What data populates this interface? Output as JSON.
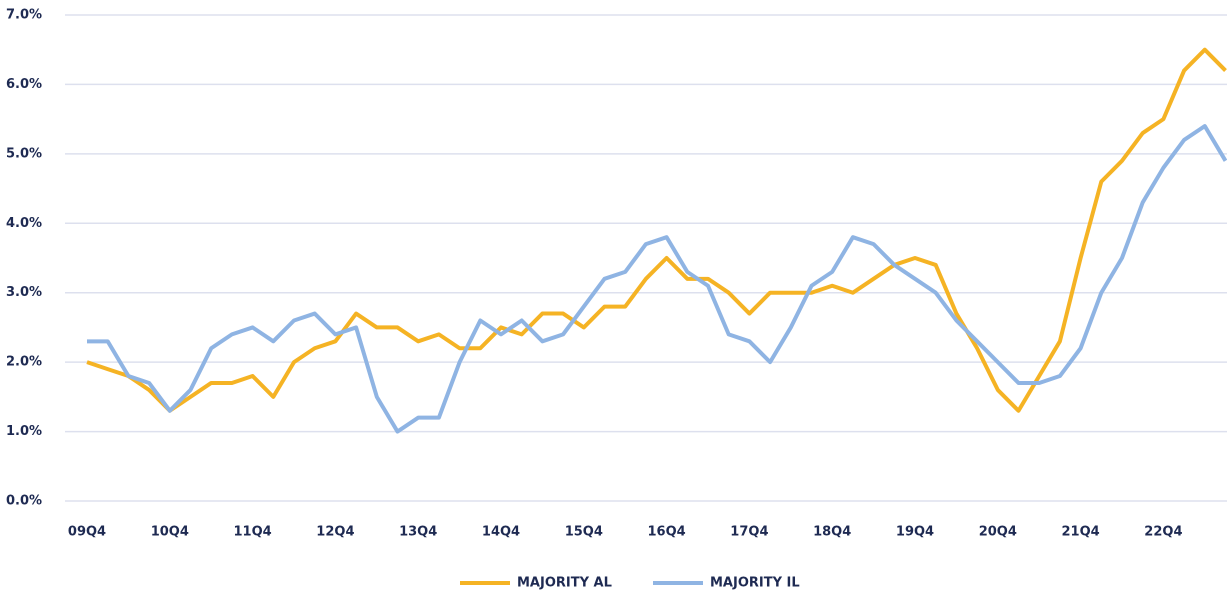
{
  "chart_data": {
    "type": "line",
    "categories": [
      "09Q4",
      null,
      null,
      null,
      "10Q4",
      null,
      null,
      null,
      "11Q4",
      null,
      null,
      null,
      "12Q4",
      null,
      null,
      null,
      "13Q4",
      null,
      null,
      null,
      "14Q4",
      null,
      null,
      null,
      "15Q4",
      null,
      null,
      null,
      "16Q4",
      null,
      null,
      null,
      "17Q4",
      null,
      null,
      null,
      "18Q4",
      null,
      null,
      null,
      "19Q4",
      null,
      null,
      null,
      "20Q4",
      null,
      null,
      null,
      "21Q4",
      null,
      null,
      null,
      "22Q4",
      null,
      null,
      null
    ],
    "series": [
      {
        "name": "MAJORITY AL",
        "color": "#f5b324",
        "values": [
          2.0,
          1.9,
          1.8,
          1.6,
          1.3,
          1.5,
          1.7,
          1.7,
          1.8,
          1.5,
          2.0,
          2.2,
          2.3,
          2.7,
          2.5,
          2.5,
          2.3,
          2.4,
          2.2,
          2.2,
          2.5,
          2.4,
          2.7,
          2.7,
          2.5,
          2.8,
          2.8,
          3.2,
          3.5,
          3.2,
          3.2,
          3.0,
          2.7,
          3.0,
          3.0,
          3.0,
          3.1,
          3.0,
          3.2,
          3.4,
          3.5,
          3.4,
          2.7,
          2.2,
          1.6,
          1.3,
          1.8,
          2.3,
          3.5,
          4.6,
          4.9,
          5.3,
          5.5,
          6.2,
          6.5,
          6.2
        ]
      },
      {
        "name": "MAJORITY IL",
        "color": "#8fb4e3",
        "values": [
          2.3,
          2.3,
          1.8,
          1.7,
          1.3,
          1.6,
          2.2,
          2.4,
          2.5,
          2.3,
          2.6,
          2.7,
          2.4,
          2.5,
          1.5,
          1.0,
          1.2,
          1.2,
          2.0,
          2.6,
          2.4,
          2.6,
          2.3,
          2.4,
          2.8,
          3.2,
          3.3,
          3.7,
          3.8,
          3.3,
          3.1,
          2.4,
          2.3,
          2.0,
          2.5,
          3.1,
          3.3,
          3.8,
          3.7,
          3.4,
          3.2,
          3.0,
          2.6,
          2.3,
          2.0,
          1.7,
          1.7,
          1.8,
          2.2,
          3.0,
          3.5,
          4.3,
          4.8,
          5.2,
          5.4,
          4.9
        ]
      }
    ],
    "ylim": [
      0,
      7
    ],
    "yticks": [
      {
        "value": 0,
        "label": "0.0%"
      },
      {
        "value": 1,
        "label": "1.0%"
      },
      {
        "value": 2,
        "label": "2.0%"
      },
      {
        "value": 3,
        "label": "3.0%"
      },
      {
        "value": 4,
        "label": "4.0%"
      },
      {
        "value": 5,
        "label": "5.0%"
      },
      {
        "value": 6,
        "label": "6.0%"
      },
      {
        "value": 7,
        "label": "7.0%"
      }
    ],
    "grid": true
  }
}
